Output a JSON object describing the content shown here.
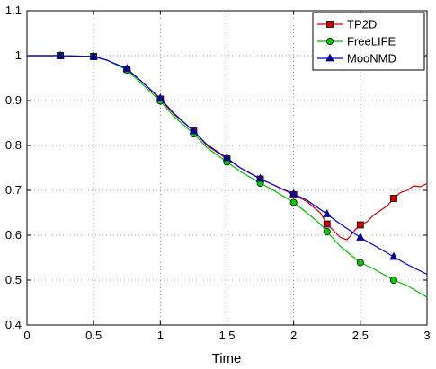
{
  "chart_data": {
    "type": "line",
    "title": "",
    "xlabel": "Time",
    "ylabel": "",
    "xlim": [
      0,
      3
    ],
    "ylim": [
      0.4,
      1.1
    ],
    "xticks": [
      0,
      0.5,
      1,
      1.5,
      2,
      2.5,
      3
    ],
    "yticks": [
      0.4,
      0.5,
      0.6,
      0.7,
      0.8,
      0.9,
      1,
      1.1
    ],
    "xtick_labels": [
      "0",
      "0.5",
      "1",
      "1.5",
      "2",
      "2.5",
      "3"
    ],
    "ytick_labels": [
      "0.4",
      "0.5",
      "0.6",
      "0.7",
      "0.8",
      "0.9",
      "1",
      "1.1"
    ],
    "grid": true,
    "grid_style": "dotted",
    "legend_position": "top-right",
    "series": [
      {
        "name": "TP2D",
        "color": "#cc0000",
        "marker": "square",
        "marker_fill": "#cc0000",
        "x": [
          0,
          0.25,
          0.5,
          0.6,
          0.75,
          0.85,
          1,
          1.1,
          1.25,
          1.35,
          1.5,
          1.6,
          1.75,
          1.85,
          2,
          2.1,
          2.2,
          2.25,
          2.3,
          2.35,
          2.4,
          2.43,
          2.46,
          2.5,
          2.55,
          2.6,
          2.65,
          2.7,
          2.75,
          2.8,
          2.85,
          2.9,
          2.95,
          3
        ],
        "y": [
          1,
          1,
          0.998,
          0.99,
          0.97,
          0.945,
          0.903,
          0.87,
          0.832,
          0.8,
          0.77,
          0.75,
          0.725,
          0.712,
          0.69,
          0.675,
          0.65,
          0.625,
          0.61,
          0.595,
          0.59,
          0.6,
          0.612,
          0.623,
          0.63,
          0.645,
          0.655,
          0.665,
          0.682,
          0.695,
          0.7,
          0.71,
          0.708,
          0.715
        ],
        "marker_x": [
          0.25,
          0.5,
          0.75,
          1,
          1.25,
          1.5,
          1.75,
          2,
          2.25,
          2.5,
          2.75
        ]
      },
      {
        "name": "FreeLIFE",
        "color": "#00bb00",
        "marker": "circle",
        "marker_fill": "#00cc00",
        "x": [
          0,
          0.25,
          0.5,
          0.6,
          0.75,
          0.85,
          1,
          1.1,
          1.25,
          1.35,
          1.5,
          1.6,
          1.75,
          1.85,
          2,
          2.1,
          2.2,
          2.25,
          2.35,
          2.5,
          2.6,
          2.75,
          2.85,
          3
        ],
        "y": [
          1,
          1,
          0.998,
          0.99,
          0.968,
          0.94,
          0.899,
          0.865,
          0.826,
          0.795,
          0.763,
          0.742,
          0.716,
          0.7,
          0.673,
          0.65,
          0.625,
          0.608,
          0.575,
          0.539,
          0.525,
          0.5,
          0.488,
          0.462
        ],
        "marker_x": [
          0.25,
          0.5,
          0.75,
          1,
          1.25,
          1.5,
          1.75,
          2,
          2.25,
          2.5,
          2.75
        ]
      },
      {
        "name": "MooNMD",
        "color": "#0000cc",
        "marker": "triangle",
        "marker_fill": "#000088",
        "x": [
          0,
          0.25,
          0.5,
          0.6,
          0.75,
          0.85,
          1,
          1.1,
          1.25,
          1.35,
          1.5,
          1.6,
          1.75,
          1.85,
          2,
          2.1,
          2.25,
          2.35,
          2.5,
          2.6,
          2.75,
          2.85,
          3
        ],
        "y": [
          1,
          1,
          0.998,
          0.99,
          0.971,
          0.945,
          0.905,
          0.872,
          0.832,
          0.802,
          0.772,
          0.75,
          0.726,
          0.712,
          0.692,
          0.678,
          0.647,
          0.625,
          0.595,
          0.578,
          0.552,
          0.535,
          0.513
        ],
        "marker_x": [
          0.25,
          0.5,
          0.75,
          1,
          1.25,
          1.5,
          1.75,
          2,
          2.25,
          2.5,
          2.75
        ]
      }
    ]
  }
}
